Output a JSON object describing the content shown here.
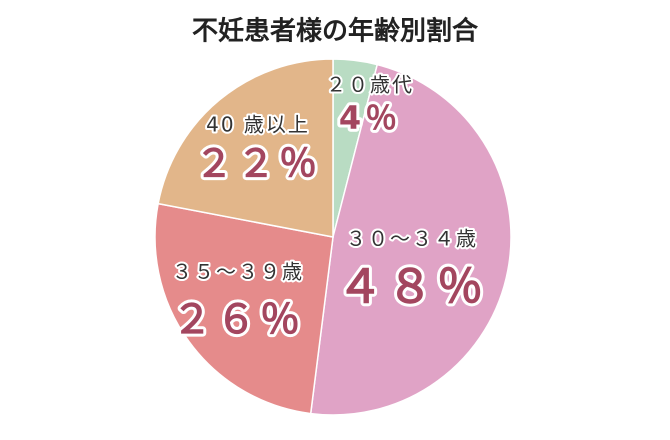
{
  "chart_data": {
    "type": "pie",
    "title": "不妊患者様の年齢別割合",
    "categories": [
      "２０歳代",
      "３０～３４歳",
      "３５～３９歳",
      "40 歳以上"
    ],
    "values": [
      4,
      48,
      26,
      22
    ],
    "value_labels": [
      "4％",
      "４８％",
      "２６％",
      "２２％"
    ],
    "colors": [
      "#b9dcc3",
      "#e0a3c6",
      "#e58b8b",
      "#e2b68a"
    ]
  }
}
